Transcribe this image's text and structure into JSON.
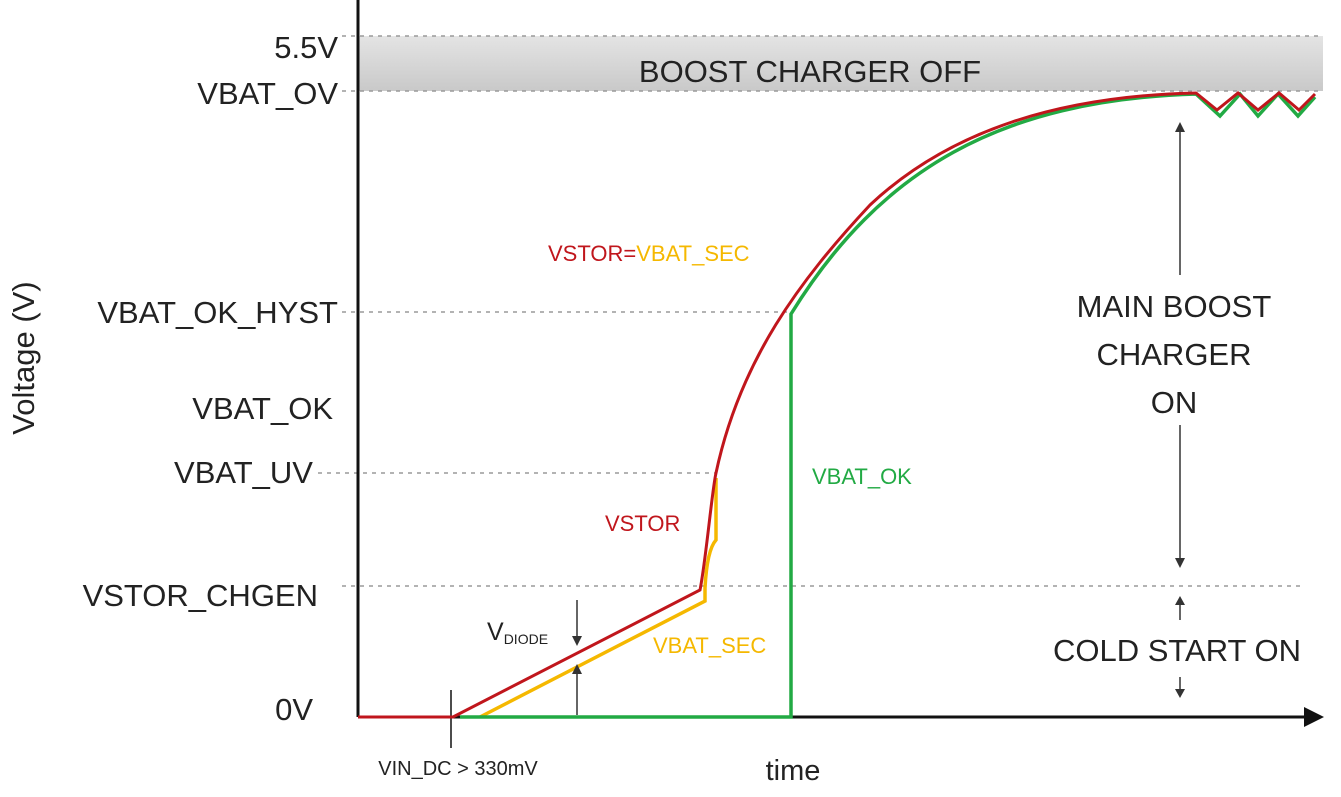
{
  "axes": {
    "y_title": "Voltage (V)",
    "x_title": "time",
    "x_event": "VIN_DC > 330mV"
  },
  "levels": {
    "v55": "5.5V",
    "vbat_ov": "VBAT_OV",
    "vbat_ok_hyst": "VBAT_OK_HYST",
    "vbat_ok": "VBAT_OK",
    "vbat_uv": "VBAT_UV",
    "vstor_chgen": "VSTOR_CHGEN",
    "zero": "0V"
  },
  "regions": {
    "off_band": "BOOST CHARGER OFF",
    "main_line1": "MAIN BOOST",
    "main_line2": "CHARGER",
    "main_line3": "ON",
    "cold_start": "COLD START ON"
  },
  "traces": {
    "vstor_equals": "VSTOR=",
    "vbat_sec_inline": "VBAT_SEC",
    "vstor": "VSTOR",
    "vbat_sec": "VBAT_SEC",
    "vbat_ok": "VBAT_OK",
    "vdiode_main": "V",
    "vdiode_sub": "DIODE"
  },
  "colors": {
    "vstor": "#c0161c",
    "vbat_sec": "#f5b800",
    "vbat_ok": "#22aa44",
    "off_band": "#d6d6d6",
    "axis": "#111111"
  }
}
